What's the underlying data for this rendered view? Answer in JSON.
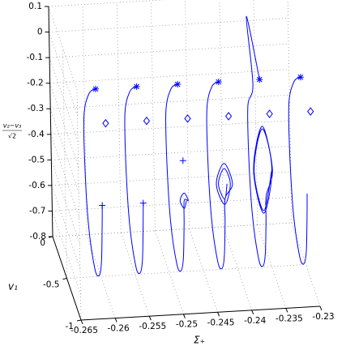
{
  "chart_data": {
    "type": "line3d",
    "xlabel": "Σ₊",
    "ylabel": "v₁",
    "zlabel_numerator": "v₂−v₃",
    "zlabel_denominator": "√2",
    "xlim": [
      -0.265,
      -0.23
    ],
    "ylim": [
      -1,
      0
    ],
    "zlim": [
      -0.8,
      0.1
    ],
    "xticks": [
      -0.265,
      -0.26,
      -0.255,
      -0.25,
      -0.245,
      -0.24,
      -0.235,
      -0.23
    ],
    "yticks": [
      0,
      -0.5,
      -1
    ],
    "zticks": [
      0.1,
      0,
      -0.1,
      -0.2,
      -0.3,
      -0.4,
      -0.5,
      -0.6,
      -0.7,
      -0.8
    ],
    "grid": true,
    "color": "#0000ff",
    "series": [
      {
        "sigma": -0.2605,
        "v1": [
          -0.55,
          -0.3,
          -0.1,
          -0.1,
          -0.2,
          -0.4,
          -0.55,
          -0.65,
          -0.7,
          -0.72
        ],
        "z": [
          -0.05,
          -0.15,
          -0.3,
          -0.5,
          -0.7,
          -0.8,
          -0.78,
          -0.7,
          -0.55,
          -0.45
        ]
      },
      {
        "sigma": -0.2545,
        "v1": [
          -0.55,
          -0.3,
          -0.1,
          -0.1,
          -0.2,
          -0.4,
          -0.55,
          -0.65,
          -0.7,
          -0.72
        ],
        "z": [
          -0.05,
          -0.15,
          -0.3,
          -0.5,
          -0.7,
          -0.8,
          -0.78,
          -0.7,
          -0.55,
          -0.45
        ]
      },
      {
        "sigma": -0.2485,
        "v1": [
          -0.55,
          -0.3,
          -0.1,
          -0.1,
          -0.2,
          -0.4,
          -0.55,
          -0.65,
          -0.7,
          -0.72,
          -0.87,
          -0.72,
          -0.57,
          -0.72,
          -0.8
        ],
        "z": [
          -0.05,
          -0.15,
          -0.3,
          -0.5,
          -0.7,
          -0.8,
          -0.78,
          -0.7,
          -0.55,
          -0.45,
          -0.401,
          -0.42,
          -0.499,
          -0.48,
          -0.424
        ]
      },
      {
        "sigma": -0.2425,
        "v1": [
          -0.55,
          -0.3,
          -0.1,
          -0.1,
          -0.2,
          -0.4,
          -0.55,
          -0.65,
          -0.7,
          -0.72,
          -1,
          -0.7,
          -0.4,
          -0.7,
          -0.92,
          -0.7,
          -0.48,
          -0.7,
          -0.8
        ],
        "z": [
          -0.05,
          -0.15,
          -0.3,
          -0.5,
          -0.7,
          -0.8,
          -0.78,
          -0.7,
          -0.55,
          -0.45,
          -0.302,
          -0.32,
          -0.498,
          -0.48,
          -0.328,
          -0.34,
          -0.472,
          -0.46,
          -0.367
        ]
      },
      {
        "sigma": -0.2365,
        "v1": [
          -0.55,
          -0.1,
          -0.3,
          -0.1,
          -0.1,
          -0.2,
          -0.4,
          -0.55,
          -0.65,
          -0.7,
          -0.72,
          -0.97,
          -0.62,
          -0.27,
          -0.62,
          -0.95,
          -0.62,
          -0.29,
          -0.62,
          -0.94
        ],
        "z": [
          -0.05,
          0.05,
          -0.15,
          -0.3,
          -0.5,
          -0.7,
          -0.8,
          -0.78,
          -0.7,
          -0.55,
          -0.45,
          -0.266,
          -0.21,
          -0.494,
          -0.55,
          -0.27,
          -0.22,
          -0.49,
          -0.54,
          -0.28
        ]
      },
      {
        "sigma": -0.2305,
        "v1": [
          -0.55,
          -0.3,
          -0.1,
          -0.1,
          -0.2,
          -0.4,
          -0.55,
          -0.65,
          -0.7,
          -0.72
        ],
        "z": [
          -0.05,
          -0.15,
          -0.3,
          -0.5,
          -0.7,
          -0.8,
          -0.78,
          -0.7,
          -0.55,
          -0.45
        ]
      }
    ],
    "diamonds": {
      "sigma": [
        -0.2605,
        -0.2545,
        -0.2485,
        -0.2425,
        -0.2365,
        -0.2305
      ],
      "v1": [
        -0.9,
        -0.9,
        -0.9,
        -0.9,
        -0.9,
        -0.9
      ],
      "z": [
        -0.07,
        -0.07,
        -0.07,
        -0.07,
        -0.07,
        -0.07
      ]
    },
    "pluses": {
      "sigma": [
        -0.2605,
        -0.2545,
        -0.2485
      ],
      "v1": [
        -0.72,
        -0.72,
        -0.7
      ],
      "z": [
        -0.45,
        -0.45,
        -0.3
      ]
    }
  }
}
